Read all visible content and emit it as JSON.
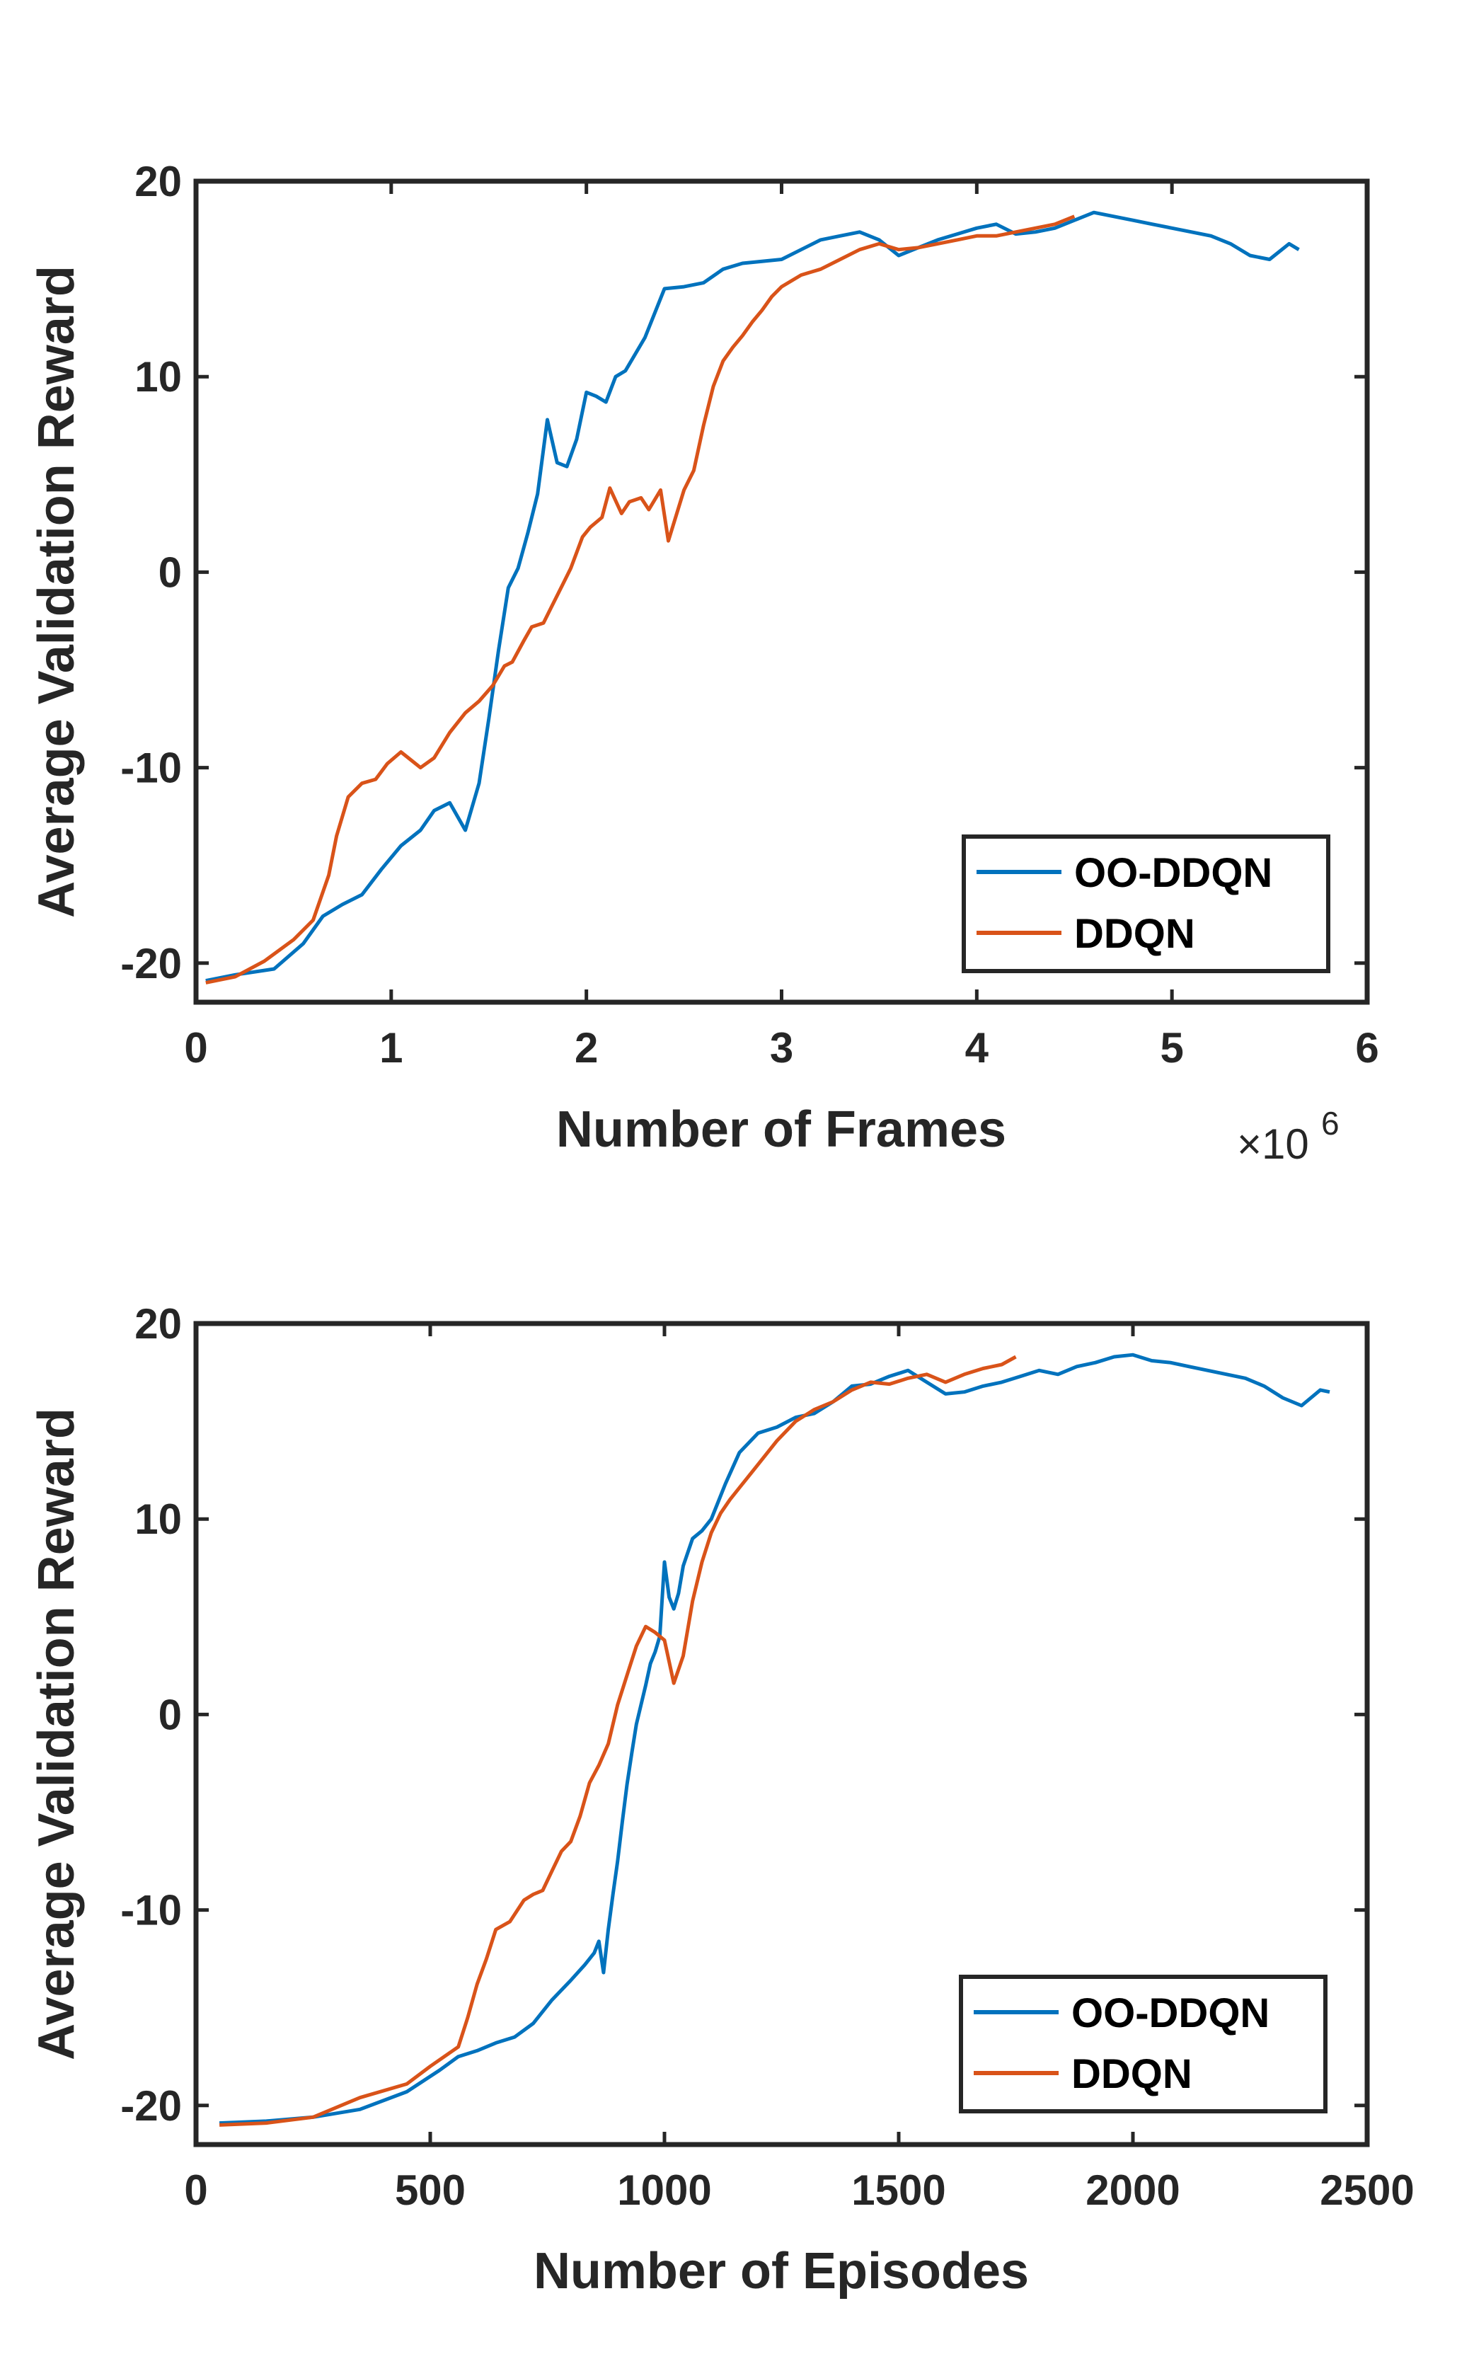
{
  "colors": {
    "oo_ddqn": "#0072BD",
    "ddqn": "#D95319",
    "axis": "#262626"
  },
  "chart_data": [
    {
      "type": "line",
      "xlabel": "Number of Frames",
      "ylabel": "Average Validation Reward",
      "x_exponent": "×10^6",
      "x_exponent_base": "×10",
      "x_exponent_power": "6",
      "xlim": [
        0,
        6
      ],
      "ylim": [
        -22,
        20
      ],
      "x_ticks": [
        "0",
        "1",
        "2",
        "3",
        "4",
        "5",
        "6"
      ],
      "y_ticks": [
        "20",
        "10",
        "0",
        "-10",
        "-20"
      ],
      "legend": {
        "position": "bottom-right",
        "entries": [
          "OO-DDQN",
          "DDQN"
        ]
      },
      "series": [
        {
          "name": "OO-DDQN",
          "x": [
            0.05,
            0.2,
            0.4,
            0.55,
            0.65,
            0.75,
            0.85,
            0.95,
            1.05,
            1.15,
            1.22,
            1.3,
            1.38,
            1.45,
            1.5,
            1.55,
            1.6,
            1.65,
            1.7,
            1.75,
            1.8,
            1.85,
            1.9,
            1.95,
            2.0,
            2.05,
            2.1,
            2.15,
            2.2,
            2.3,
            2.4,
            2.5,
            2.6,
            2.7,
            2.8,
            3.0,
            3.1,
            3.2,
            3.3,
            3.4,
            3.5,
            3.6,
            3.7,
            3.8,
            3.9,
            4.0,
            4.1,
            4.2,
            4.3,
            4.4,
            4.5,
            4.6,
            4.7,
            4.8,
            4.9,
            5.0,
            5.1,
            5.2,
            5.3,
            5.4,
            5.5,
            5.6,
            5.65
          ],
          "values": [
            -20.9,
            -20.6,
            -20.3,
            -19.0,
            -17.6,
            -17.0,
            -16.5,
            -15.2,
            -14.0,
            -13.2,
            -12.2,
            -11.8,
            -13.2,
            -10.8,
            -7.5,
            -4.0,
            -0.8,
            0.2,
            2.0,
            4.0,
            7.8,
            5.6,
            5.4,
            6.8,
            9.2,
            9.0,
            8.7,
            10.0,
            10.3,
            12.0,
            14.5,
            14.6,
            14.8,
            15.5,
            15.8,
            16.0,
            16.5,
            17.0,
            17.2,
            17.4,
            17.0,
            16.2,
            16.6,
            17.0,
            17.3,
            17.6,
            17.8,
            17.3,
            17.4,
            17.6,
            18.0,
            18.4,
            18.2,
            18.0,
            17.8,
            17.6,
            17.4,
            17.2,
            16.8,
            16.2,
            16.0,
            16.8,
            16.5
          ]
        },
        {
          "name": "DDQN",
          "x": [
            0.05,
            0.2,
            0.35,
            0.5,
            0.6,
            0.68,
            0.72,
            0.78,
            0.85,
            0.92,
            0.98,
            1.05,
            1.1,
            1.15,
            1.22,
            1.3,
            1.38,
            1.45,
            1.52,
            1.58,
            1.62,
            1.68,
            1.72,
            1.78,
            1.82,
            1.88,
            1.92,
            1.98,
            2.02,
            2.08,
            2.12,
            2.18,
            2.22,
            2.28,
            2.32,
            2.38,
            2.42,
            2.5,
            2.55,
            2.6,
            2.65,
            2.7,
            2.75,
            2.8,
            2.85,
            2.9,
            2.95,
            3.0,
            3.1,
            3.2,
            3.3,
            3.4,
            3.5,
            3.6,
            3.7,
            3.8,
            3.9,
            4.0,
            4.1,
            4.2,
            4.3,
            4.4,
            4.5
          ],
          "values": [
            -21.0,
            -20.7,
            -19.9,
            -18.8,
            -17.8,
            -15.5,
            -13.5,
            -11.5,
            -10.8,
            -10.6,
            -9.8,
            -9.2,
            -9.6,
            -10.0,
            -9.5,
            -8.2,
            -7.2,
            -6.6,
            -5.8,
            -4.8,
            -4.6,
            -3.5,
            -2.8,
            -2.6,
            -1.8,
            -0.6,
            0.2,
            1.8,
            2.3,
            2.8,
            4.3,
            3.0,
            3.6,
            3.8,
            3.2,
            4.2,
            1.6,
            4.2,
            5.2,
            7.5,
            9.5,
            10.8,
            11.5,
            12.1,
            12.8,
            13.4,
            14.1,
            14.6,
            15.2,
            15.5,
            16.0,
            16.5,
            16.8,
            16.5,
            16.6,
            16.8,
            17.0,
            17.2,
            17.2,
            17.4,
            17.6,
            17.8,
            18.2
          ]
        }
      ]
    },
    {
      "type": "line",
      "xlabel": "Number of Episodes",
      "ylabel": "Average Validation Reward",
      "xlim": [
        0,
        2500
      ],
      "ylim": [
        -22,
        20
      ],
      "x_ticks": [
        "0",
        "500",
        "1000",
        "1500",
        "2000",
        "2500"
      ],
      "y_ticks": [
        "20",
        "10",
        "0",
        "-10",
        "-20"
      ],
      "legend": {
        "position": "bottom-right",
        "entries": [
          "OO-DDQN",
          "DDQN"
        ]
      },
      "series": [
        {
          "name": "OO-DDQN",
          "x": [
            50,
            150,
            250,
            350,
            450,
            520,
            560,
            600,
            640,
            680,
            720,
            760,
            800,
            830,
            850,
            860,
            870,
            880,
            890,
            900,
            910,
            920,
            930,
            940,
            950,
            960,
            970,
            980,
            990,
            1000,
            1010,
            1020,
            1030,
            1040,
            1060,
            1080,
            1100,
            1130,
            1160,
            1200,
            1240,
            1280,
            1320,
            1360,
            1400,
            1440,
            1480,
            1520,
            1560,
            1600,
            1640,
            1680,
            1720,
            1760,
            1800,
            1840,
            1880,
            1920,
            1960,
            2000,
            2040,
            2080,
            2120,
            2160,
            2200,
            2240,
            2280,
            2320,
            2360,
            2400,
            2420
          ],
          "values": [
            -20.9,
            -20.8,
            -20.6,
            -20.2,
            -19.3,
            -18.2,
            -17.5,
            -17.2,
            -16.8,
            -16.5,
            -15.8,
            -14.6,
            -13.6,
            -12.8,
            -12.2,
            -11.6,
            -13.2,
            -11.0,
            -9.2,
            -7.5,
            -5.5,
            -3.6,
            -2.0,
            -0.5,
            0.5,
            1.5,
            2.6,
            3.2,
            4.0,
            7.8,
            6.0,
            5.4,
            6.2,
            7.6,
            9.0,
            9.4,
            10.0,
            11.8,
            13.4,
            14.4,
            14.7,
            15.2,
            15.4,
            16.0,
            16.8,
            16.9,
            17.3,
            17.6,
            17.0,
            16.4,
            16.5,
            16.8,
            17.0,
            17.3,
            17.6,
            17.4,
            17.8,
            18.0,
            18.3,
            18.4,
            18.1,
            18.0,
            17.8,
            17.6,
            17.4,
            17.2,
            16.8,
            16.2,
            15.8,
            16.6,
            16.5
          ]
        },
        {
          "name": "DDQN",
          "x": [
            50,
            150,
            250,
            350,
            450,
            500,
            530,
            560,
            580,
            600,
            620,
            640,
            670,
            700,
            720,
            740,
            760,
            780,
            800,
            820,
            840,
            860,
            880,
            900,
            920,
            940,
            960,
            980,
            1000,
            1020,
            1040,
            1060,
            1080,
            1100,
            1120,
            1140,
            1160,
            1180,
            1200,
            1240,
            1280,
            1320,
            1360,
            1400,
            1440,
            1480,
            1520,
            1560,
            1600,
            1640,
            1680,
            1720,
            1750
          ],
          "values": [
            -21.0,
            -20.9,
            -20.6,
            -19.6,
            -18.9,
            -18.0,
            -17.5,
            -17.0,
            -15.5,
            -13.8,
            -12.5,
            -11.0,
            -10.6,
            -9.5,
            -9.2,
            -9.0,
            -8.0,
            -7.0,
            -6.5,
            -5.2,
            -3.5,
            -2.6,
            -1.5,
            0.5,
            2.0,
            3.5,
            4.5,
            4.2,
            3.8,
            1.6,
            3.0,
            5.8,
            7.8,
            9.3,
            10.3,
            11.0,
            11.6,
            12.2,
            12.8,
            14.0,
            15.0,
            15.6,
            16.0,
            16.6,
            17.0,
            16.9,
            17.2,
            17.4,
            17.0,
            17.4,
            17.7,
            17.9,
            18.3
          ]
        }
      ]
    }
  ]
}
